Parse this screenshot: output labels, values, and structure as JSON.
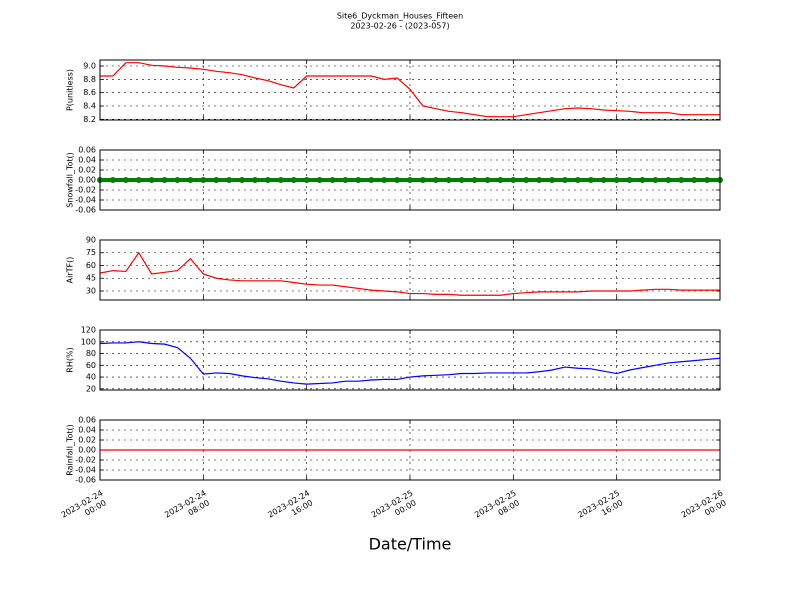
{
  "chart_data": [
    {
      "type": "line",
      "title": "Site6_Dyckman_Houses_Fifteen",
      "subtitle": "2023-02-26 - (2023-057)",
      "ylabel": "P(unitless)",
      "color": "#ff0000",
      "x": [
        "2023-02-24 00:00",
        "2023-02-24 01:00",
        "2023-02-24 02:00",
        "2023-02-24 03:00",
        "2023-02-24 04:00",
        "2023-02-24 05:00",
        "2023-02-24 06:00",
        "2023-02-24 07:00",
        "2023-02-24 08:00",
        "2023-02-24 09:00",
        "2023-02-24 10:00",
        "2023-02-24 11:00",
        "2023-02-24 12:00",
        "2023-02-24 13:00",
        "2023-02-24 14:00",
        "2023-02-24 15:00",
        "2023-02-24 16:00",
        "2023-02-24 17:00",
        "2023-02-24 18:00",
        "2023-02-24 19:00",
        "2023-02-24 20:00",
        "2023-02-24 21:00",
        "2023-02-24 22:00",
        "2023-02-24 23:00",
        "2023-02-25 00:00",
        "2023-02-25 01:00",
        "2023-02-25 02:00",
        "2023-02-25 03:00",
        "2023-02-25 04:00",
        "2023-02-25 05:00",
        "2023-02-25 06:00",
        "2023-02-25 07:00",
        "2023-02-25 08:00",
        "2023-02-25 09:00",
        "2023-02-25 10:00",
        "2023-02-25 11:00",
        "2023-02-25 12:00",
        "2023-02-25 13:00",
        "2023-02-25 14:00",
        "2023-02-25 15:00",
        "2023-02-25 16:00",
        "2023-02-25 17:00",
        "2023-02-25 18:00",
        "2023-02-25 19:00",
        "2023-02-25 20:00",
        "2023-02-25 21:00",
        "2023-02-25 22:00",
        "2023-02-25 23:00",
        "2023-02-26 00:00"
      ],
      "values": [
        8.85,
        8.85,
        9.05,
        9.05,
        9.01,
        9.0,
        8.98,
        8.97,
        8.95,
        8.92,
        8.9,
        8.87,
        8.82,
        8.78,
        8.72,
        8.67,
        8.85,
        8.85,
        8.85,
        8.85,
        8.85,
        8.85,
        8.8,
        8.82,
        8.65,
        8.4,
        8.36,
        8.32,
        8.3,
        8.27,
        8.24,
        8.24,
        8.24,
        8.27,
        8.3,
        8.33,
        8.36,
        8.37,
        8.36,
        8.34,
        8.33,
        8.32,
        8.3,
        8.3,
        8.3,
        8.27,
        8.27,
        8.27,
        8.27
      ],
      "xlim": [
        "2023-02-24 00:00",
        "2023-02-26 00:00"
      ],
      "xticks": [
        "2023-02-24 00:00",
        "2023-02-24 08:00",
        "2023-02-24 16:00",
        "2023-02-25 00:00",
        "2023-02-25 08:00",
        "2023-02-25 16:00",
        "2023-02-26 00:00"
      ],
      "ylim": [
        8.19,
        9.09
      ],
      "yticks": [
        8.2,
        8.4,
        8.6,
        8.8,
        {
          "value": 9.0,
          "label": "9.0"
        }
      ],
      "grid": true
    },
    {
      "type": "line",
      "ylabel": "Snowfall_Tot()",
      "color": "#008000",
      "markers": true,
      "x": [
        "2023-02-24 00:00",
        "2023-02-24 01:00",
        "2023-02-24 02:00",
        "2023-02-24 03:00",
        "2023-02-24 04:00",
        "2023-02-24 05:00",
        "2023-02-24 06:00",
        "2023-02-24 07:00",
        "2023-02-24 08:00",
        "2023-02-24 09:00",
        "2023-02-24 10:00",
        "2023-02-24 11:00",
        "2023-02-24 12:00",
        "2023-02-24 13:00",
        "2023-02-24 14:00",
        "2023-02-24 15:00",
        "2023-02-24 16:00",
        "2023-02-24 17:00",
        "2023-02-24 18:00",
        "2023-02-24 19:00",
        "2023-02-24 20:00",
        "2023-02-24 21:00",
        "2023-02-24 22:00",
        "2023-02-24 23:00",
        "2023-02-25 00:00",
        "2023-02-25 01:00",
        "2023-02-25 02:00",
        "2023-02-25 03:00",
        "2023-02-25 04:00",
        "2023-02-25 05:00",
        "2023-02-25 06:00",
        "2023-02-25 07:00",
        "2023-02-25 08:00",
        "2023-02-25 09:00",
        "2023-02-25 10:00",
        "2023-02-25 11:00",
        "2023-02-25 12:00",
        "2023-02-25 13:00",
        "2023-02-25 14:00",
        "2023-02-25 15:00",
        "2023-02-25 16:00",
        "2023-02-25 17:00",
        "2023-02-25 18:00",
        "2023-02-25 19:00",
        "2023-02-25 20:00",
        "2023-02-25 21:00",
        "2023-02-25 22:00",
        "2023-02-25 23:00",
        "2023-02-26 00:00"
      ],
      "values": [
        0,
        0,
        0,
        0,
        0,
        0,
        0,
        0,
        0,
        0,
        0,
        0,
        0,
        0,
        0,
        0,
        0,
        0,
        0,
        0,
        0,
        0,
        0,
        0,
        0,
        0,
        0,
        0,
        0,
        0,
        0,
        0,
        0,
        0,
        0,
        0,
        0,
        0,
        0,
        0,
        0,
        0,
        0,
        0,
        0,
        0,
        0,
        0,
        0
      ],
      "xlim": [
        "2023-02-24 00:00",
        "2023-02-26 00:00"
      ],
      "xticks": [
        "2023-02-24 00:00",
        "2023-02-24 08:00",
        "2023-02-24 16:00",
        "2023-02-25 00:00",
        "2023-02-25 08:00",
        "2023-02-25 16:00",
        "2023-02-26 00:00"
      ],
      "ylim": [
        -0.06,
        0.06
      ],
      "yticks": [
        -0.06,
        -0.04,
        -0.02,
        {
          "value": 0,
          "label": "0.00"
        },
        0.02,
        0.04,
        0.06
      ],
      "grid": true
    },
    {
      "type": "line",
      "ylabel": "AirTF()",
      "color": "#ff0000",
      "x": [
        "2023-02-24 00:00",
        "2023-02-24 01:00",
        "2023-02-24 02:00",
        "2023-02-24 03:00",
        "2023-02-24 04:00",
        "2023-02-24 05:00",
        "2023-02-24 06:00",
        "2023-02-24 07:00",
        "2023-02-24 08:00",
        "2023-02-24 09:00",
        "2023-02-24 10:00",
        "2023-02-24 11:00",
        "2023-02-24 12:00",
        "2023-02-24 13:00",
        "2023-02-24 14:00",
        "2023-02-24 15:00",
        "2023-02-24 16:00",
        "2023-02-24 17:00",
        "2023-02-24 18:00",
        "2023-02-24 19:00",
        "2023-02-24 20:00",
        "2023-02-24 21:00",
        "2023-02-24 22:00",
        "2023-02-24 23:00",
        "2023-02-25 00:00",
        "2023-02-25 01:00",
        "2023-02-25 02:00",
        "2023-02-25 03:00",
        "2023-02-25 04:00",
        "2023-02-25 05:00",
        "2023-02-25 06:00",
        "2023-02-25 07:00",
        "2023-02-25 08:00",
        "2023-02-25 09:00",
        "2023-02-25 10:00",
        "2023-02-25 11:00",
        "2023-02-25 12:00",
        "2023-02-25 13:00",
        "2023-02-25 14:00",
        "2023-02-25 15:00",
        "2023-02-25 16:00",
        "2023-02-25 17:00",
        "2023-02-25 18:00",
        "2023-02-25 19:00",
        "2023-02-25 20:00",
        "2023-02-25 21:00",
        "2023-02-25 22:00",
        "2023-02-25 23:00",
        "2023-02-26 00:00"
      ],
      "values": [
        51,
        54,
        53,
        75,
        50,
        52,
        54,
        68,
        50,
        45,
        43,
        42,
        42,
        42,
        42,
        40,
        38,
        37,
        37,
        35,
        33,
        31,
        30,
        29,
        27,
        27,
        26,
        26,
        25,
        25,
        25,
        25,
        27,
        28,
        29,
        29,
        29,
        29,
        30,
        30,
        30,
        30,
        31,
        32,
        32,
        31,
        31,
        31,
        31
      ],
      "xlim": [
        "2023-02-24 00:00",
        "2023-02-26 00:00"
      ],
      "xticks": [
        "2023-02-24 00:00",
        "2023-02-24 08:00",
        "2023-02-24 16:00",
        "2023-02-25 00:00",
        "2023-02-25 08:00",
        "2023-02-25 16:00",
        "2023-02-26 00:00"
      ],
      "ylim": [
        19.4,
        90
      ],
      "yticks": [
        30,
        45,
        60,
        75,
        90
      ],
      "grid": true
    },
    {
      "type": "line",
      "ylabel": "RH(%)",
      "color": "#0000ff",
      "x": [
        "2023-02-24 00:00",
        "2023-02-24 01:00",
        "2023-02-24 02:00",
        "2023-02-24 03:00",
        "2023-02-24 04:00",
        "2023-02-24 05:00",
        "2023-02-24 06:00",
        "2023-02-24 07:00",
        "2023-02-24 08:00",
        "2023-02-24 09:00",
        "2023-02-24 10:00",
        "2023-02-24 11:00",
        "2023-02-24 12:00",
        "2023-02-24 13:00",
        "2023-02-24 14:00",
        "2023-02-24 15:00",
        "2023-02-24 16:00",
        "2023-02-24 17:00",
        "2023-02-24 18:00",
        "2023-02-24 19:00",
        "2023-02-24 20:00",
        "2023-02-24 21:00",
        "2023-02-24 22:00",
        "2023-02-24 23:00",
        "2023-02-25 00:00",
        "2023-02-25 01:00",
        "2023-02-25 02:00",
        "2023-02-25 03:00",
        "2023-02-25 04:00",
        "2023-02-25 05:00",
        "2023-02-25 06:00",
        "2023-02-25 07:00",
        "2023-02-25 08:00",
        "2023-02-25 09:00",
        "2023-02-25 10:00",
        "2023-02-25 11:00",
        "2023-02-25 12:00",
        "2023-02-25 13:00",
        "2023-02-25 14:00",
        "2023-02-25 15:00",
        "2023-02-25 16:00",
        "2023-02-25 17:00",
        "2023-02-25 18:00",
        "2023-02-25 19:00",
        "2023-02-25 20:00",
        "2023-02-25 21:00",
        "2023-02-25 22:00",
        "2023-02-25 23:00",
        "2023-02-26 00:00"
      ],
      "values": [
        97,
        98,
        98,
        100,
        97,
        96,
        90,
        72,
        45,
        47,
        46,
        42,
        39,
        37,
        33,
        30,
        28,
        29,
        30,
        33,
        33,
        35,
        36,
        36,
        40,
        42,
        43,
        44,
        46,
        46,
        47,
        47,
        47,
        47,
        49,
        52,
        57,
        55,
        54,
        50,
        46,
        52,
        56,
        60,
        64,
        66,
        68,
        70,
        72
      ],
      "xlim": [
        "2023-02-24 00:00",
        "2023-02-26 00:00"
      ],
      "xticks": [
        "2023-02-24 00:00",
        "2023-02-24 08:00",
        "2023-02-24 16:00",
        "2023-02-25 00:00",
        "2023-02-25 08:00",
        "2023-02-25 16:00",
        "2023-02-26 00:00"
      ],
      "ylim": [
        18,
        120
      ],
      "yticks": [
        20,
        40,
        60,
        80,
        100,
        120
      ],
      "grid": true
    },
    {
      "type": "line",
      "ylabel": "Rainfall_Tot()",
      "xlabel": "Date/Time",
      "color": "#ff0000",
      "x": [
        "2023-02-24 00:00",
        "2023-02-24 01:00",
        "2023-02-24 02:00",
        "2023-02-24 03:00",
        "2023-02-24 04:00",
        "2023-02-24 05:00",
        "2023-02-24 06:00",
        "2023-02-24 07:00",
        "2023-02-24 08:00",
        "2023-02-24 09:00",
        "2023-02-24 10:00",
        "2023-02-24 11:00",
        "2023-02-24 12:00",
        "2023-02-24 13:00",
        "2023-02-24 14:00",
        "2023-02-24 15:00",
        "2023-02-24 16:00",
        "2023-02-24 17:00",
        "2023-02-24 18:00",
        "2023-02-24 19:00",
        "2023-02-24 20:00",
        "2023-02-24 21:00",
        "2023-02-24 22:00",
        "2023-02-24 23:00",
        "2023-02-25 00:00",
        "2023-02-25 01:00",
        "2023-02-25 02:00",
        "2023-02-25 03:00",
        "2023-02-25 04:00",
        "2023-02-25 05:00",
        "2023-02-25 06:00",
        "2023-02-25 07:00",
        "2023-02-25 08:00",
        "2023-02-25 09:00",
        "2023-02-25 10:00",
        "2023-02-25 11:00",
        "2023-02-25 12:00",
        "2023-02-25 13:00",
        "2023-02-25 14:00",
        "2023-02-25 15:00",
        "2023-02-25 16:00",
        "2023-02-25 17:00",
        "2023-02-25 18:00",
        "2023-02-25 19:00",
        "2023-02-25 20:00",
        "2023-02-25 21:00",
        "2023-02-25 22:00",
        "2023-02-25 23:00",
        "2023-02-26 00:00"
      ],
      "values": [
        0,
        0,
        0,
        0,
        0,
        0,
        0,
        0,
        0,
        0,
        0,
        0,
        0,
        0,
        0,
        0,
        0,
        0,
        0,
        0,
        0,
        0,
        0,
        0,
        0,
        0,
        0,
        0,
        0,
        0,
        0,
        0,
        0,
        0,
        0,
        0,
        0,
        0,
        0,
        0,
        0,
        0,
        0,
        0,
        0,
        0,
        0,
        0,
        0
      ],
      "xlim": [
        "2023-02-24 00:00",
        "2023-02-26 00:00"
      ],
      "xticks": [
        "2023-02-24 00:00",
        "2023-02-24 08:00",
        "2023-02-24 16:00",
        "2023-02-25 00:00",
        "2023-02-25 08:00",
        "2023-02-25 16:00",
        "2023-02-26 00:00"
      ],
      "ylim": [
        -0.06,
        0.06
      ],
      "yticks": [
        -0.06,
        -0.04,
        -0.02,
        {
          "value": 0,
          "label": "0.00"
        },
        0.02,
        0.04,
        0.06
      ],
      "grid": true,
      "tick_labels": true
    }
  ]
}
